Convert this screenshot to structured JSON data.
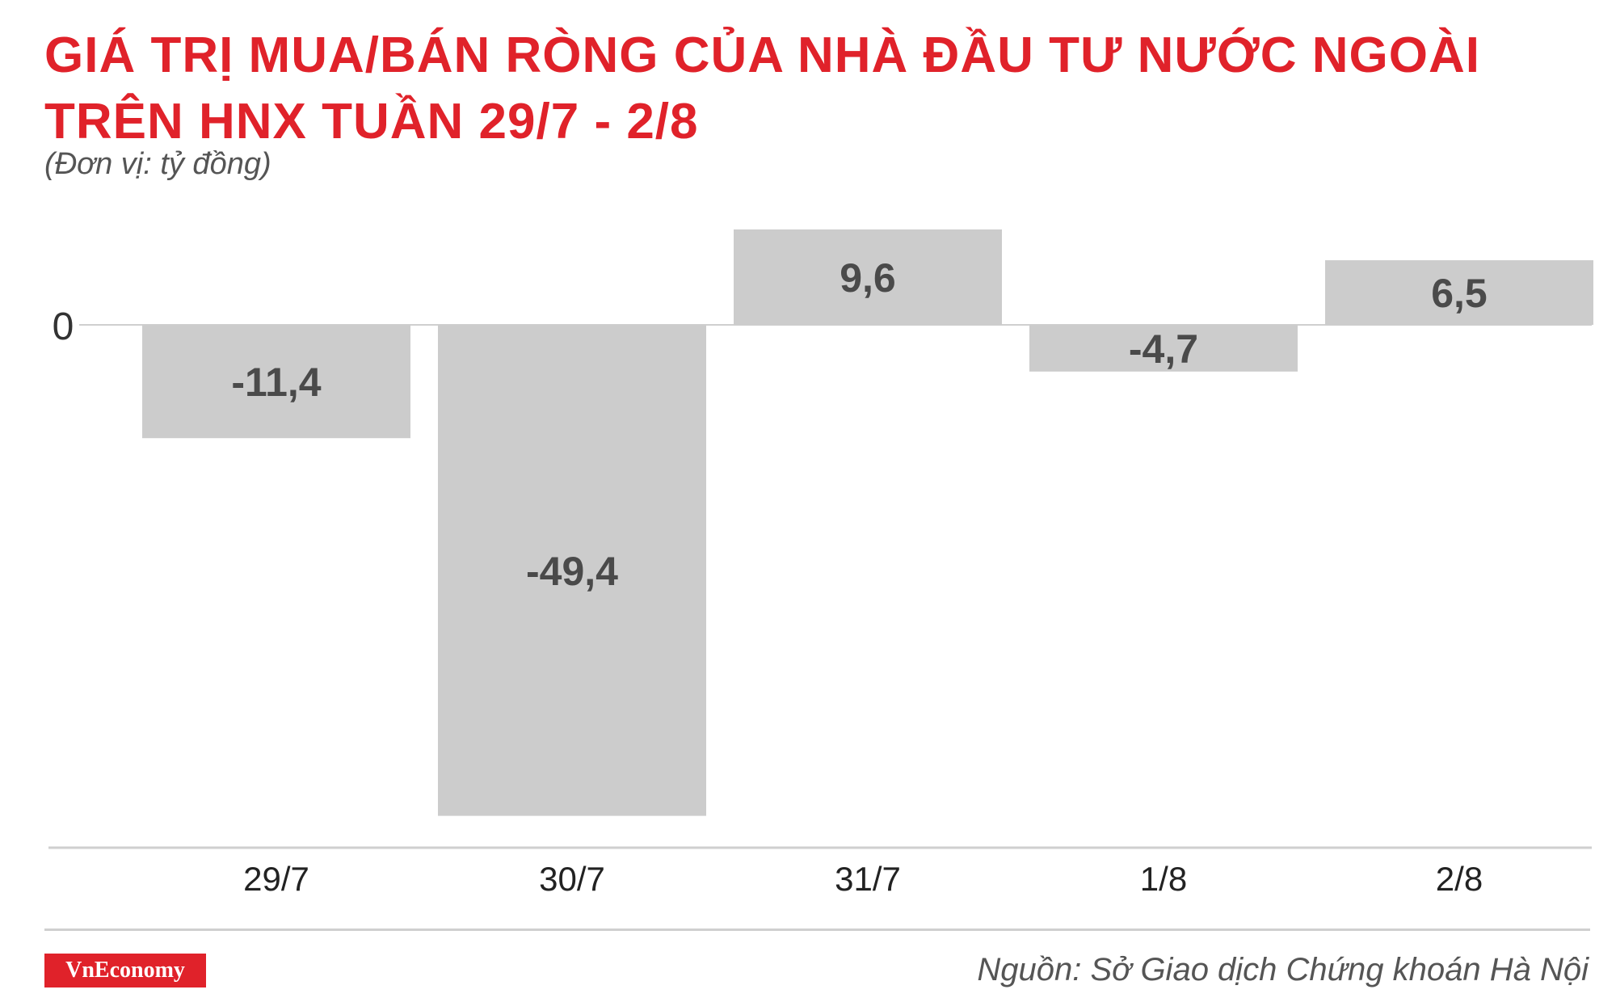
{
  "header": {
    "title_line1": "GIÁ TRỊ MUA/BÁN RÒNG CỦA NHÀ ĐẦU TƯ NƯỚC NGOÀI",
    "title_line2": "TRÊN HNX TUẦN 29/7 - 2/8",
    "unit": "(Đơn vị: tỷ đồng)"
  },
  "footer": {
    "logo_text": "VnEconomy",
    "source": "Nguồn: Sở Giao dịch Chứng khoán Hà Nội"
  },
  "colors": {
    "title": "#e0222a",
    "bar": "#cccccc",
    "label": "#4a4a4a",
    "axis": "#cfcfcf"
  },
  "chart_data": {
    "type": "bar",
    "categories": [
      "29/7",
      "30/7",
      "31/7",
      "1/8",
      "2/8"
    ],
    "values": [
      -11.4,
      -49.4,
      9.6,
      -4.7,
      6.5
    ],
    "value_labels": [
      "-11,4",
      "-49,4",
      "9,6",
      "-4,7",
      "6,5"
    ],
    "y_tick_labels": [
      "0"
    ],
    "ylim": [
      -49.4,
      9.6
    ],
    "grid": false,
    "legend": "none"
  }
}
